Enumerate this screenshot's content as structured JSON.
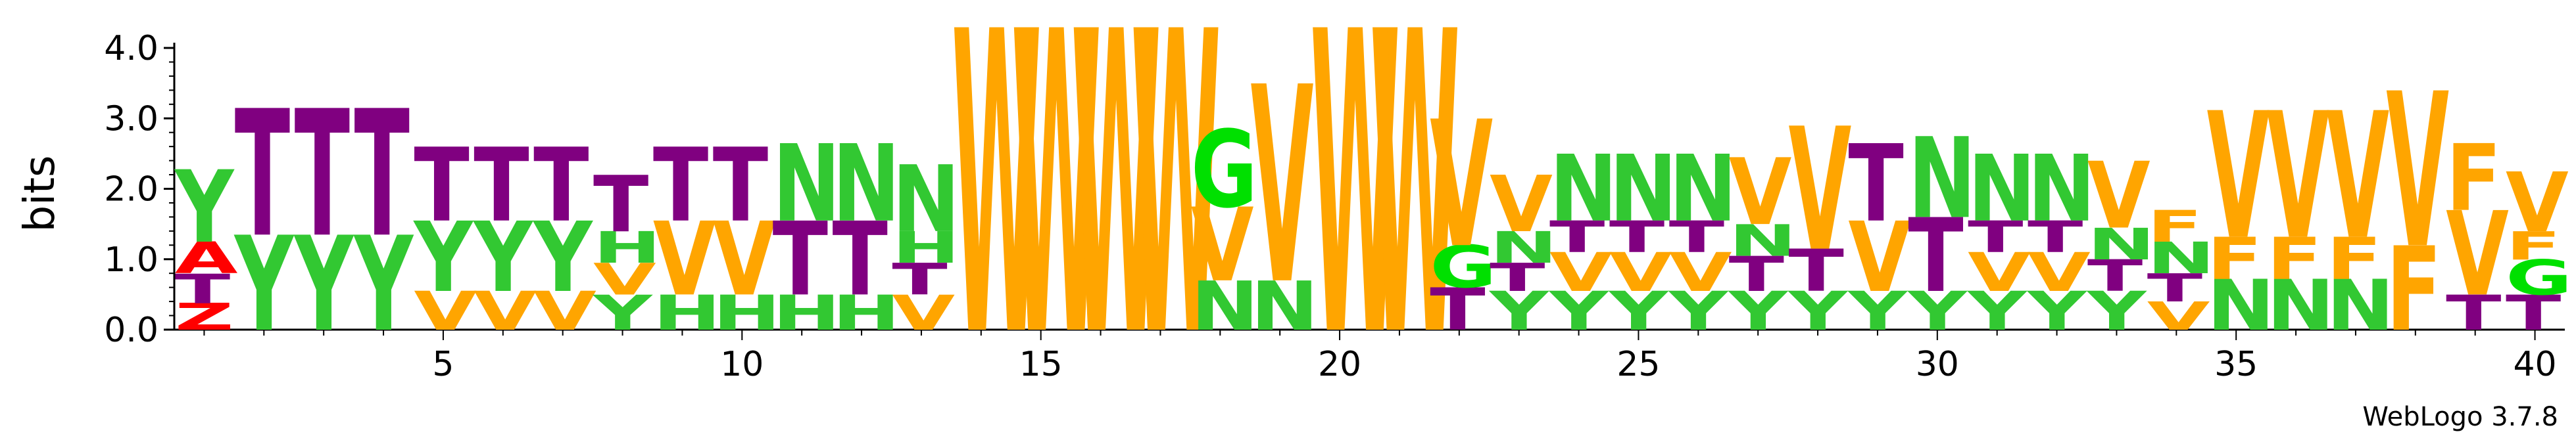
{
  "chart_data": {
    "type": "sequence-logo",
    "ylabel": "bits",
    "ylim": [
      0,
      4.0
    ],
    "y_ticks": [
      "0.0",
      "1.0",
      "2.0",
      "3.0",
      "4.0"
    ],
    "x_ticks": [
      5,
      10,
      15,
      20,
      25,
      30,
      35,
      40
    ],
    "x_tick_labels": [
      "5",
      "10",
      "15",
      "20",
      "25",
      "30",
      "35",
      "40"
    ],
    "colors": {
      "T": "#800080",
      "Y": "#32c832",
      "N": "#32c832",
      "G": "#00e000",
      "H": "#32c832",
      "A": "#ff0000",
      "Z": "#ff0000",
      "V": "#ffa500",
      "W": "#ffa500",
      "F": "#ffa500"
    },
    "positions": [
      {
        "pos": 1,
        "stack": [
          [
            "Z",
            0.38
          ],
          [
            "T",
            0.42
          ],
          [
            "A",
            0.45
          ],
          [
            "Y",
            1.03
          ]
        ]
      },
      {
        "pos": 2,
        "stack": [
          [
            "Y",
            1.35
          ],
          [
            "T",
            1.8
          ]
        ]
      },
      {
        "pos": 3,
        "stack": [
          [
            "Y",
            1.35
          ],
          [
            "T",
            1.8
          ]
        ]
      },
      {
        "pos": 4,
        "stack": [
          [
            "Y",
            1.35
          ],
          [
            "T",
            1.8
          ]
        ]
      },
      {
        "pos": 5,
        "stack": [
          [
            "V",
            0.55
          ],
          [
            "Y",
            1.0
          ],
          [
            "T",
            1.05
          ]
        ]
      },
      {
        "pos": 6,
        "stack": [
          [
            "V",
            0.55
          ],
          [
            "Y",
            1.0
          ],
          [
            "T",
            1.05
          ]
        ]
      },
      {
        "pos": 7,
        "stack": [
          [
            "V",
            0.55
          ],
          [
            "Y",
            1.0
          ],
          [
            "T",
            1.05
          ]
        ]
      },
      {
        "pos": 8,
        "stack": [
          [
            "Y",
            0.5
          ],
          [
            "V",
            0.45
          ],
          [
            "H",
            0.45
          ],
          [
            "T",
            0.8
          ]
        ]
      },
      {
        "pos": 9,
        "stack": [
          [
            "H",
            0.5
          ],
          [
            "V",
            1.05
          ],
          [
            "T",
            1.05
          ]
        ]
      },
      {
        "pos": 10,
        "stack": [
          [
            "H",
            0.5
          ],
          [
            "V",
            1.05
          ],
          [
            "T",
            1.05
          ]
        ]
      },
      {
        "pos": 11,
        "stack": [
          [
            "H",
            0.5
          ],
          [
            "T",
            1.05
          ],
          [
            "N",
            1.1
          ]
        ]
      },
      {
        "pos": 12,
        "stack": [
          [
            "H",
            0.5
          ],
          [
            "T",
            1.05
          ],
          [
            "N",
            1.1
          ]
        ]
      },
      {
        "pos": 13,
        "stack": [
          [
            "V",
            0.5
          ],
          [
            "T",
            0.45
          ],
          [
            "H",
            0.45
          ],
          [
            "N",
            0.95
          ]
        ]
      },
      {
        "pos": 14,
        "stack": [
          [
            "W",
            4.3
          ]
        ]
      },
      {
        "pos": 15,
        "stack": [
          [
            "W",
            4.3
          ]
        ]
      },
      {
        "pos": 16,
        "stack": [
          [
            "W",
            4.3
          ]
        ]
      },
      {
        "pos": 17,
        "stack": [
          [
            "W",
            4.3
          ]
        ]
      },
      {
        "pos": 18,
        "stack": [
          [
            "N",
            0.7
          ],
          [
            "V",
            1.05
          ],
          [
            "G",
            1.1
          ]
        ]
      },
      {
        "pos": 19,
        "stack": [
          [
            "N",
            0.7
          ],
          [
            "V",
            2.8
          ]
        ]
      },
      {
        "pos": 20,
        "stack": [
          [
            "W",
            4.3
          ]
        ]
      },
      {
        "pos": 21,
        "stack": [
          [
            "W",
            4.3
          ]
        ]
      },
      {
        "pos": 22,
        "stack": [
          [
            "T",
            0.6
          ],
          [
            "G",
            0.6
          ],
          [
            "V",
            1.8
          ]
        ]
      },
      {
        "pos": 23,
        "stack": [
          [
            "Y",
            0.55
          ],
          [
            "T",
            0.4
          ],
          [
            "N",
            0.45
          ],
          [
            "V",
            0.8
          ]
        ]
      },
      {
        "pos": 24,
        "stack": [
          [
            "Y",
            0.55
          ],
          [
            "V",
            0.55
          ],
          [
            "T",
            0.45
          ],
          [
            "N",
            0.95
          ]
        ]
      },
      {
        "pos": 25,
        "stack": [
          [
            "Y",
            0.55
          ],
          [
            "V",
            0.55
          ],
          [
            "T",
            0.45
          ],
          [
            "N",
            0.95
          ]
        ]
      },
      {
        "pos": 26,
        "stack": [
          [
            "Y",
            0.55
          ],
          [
            "V",
            0.55
          ],
          [
            "T",
            0.45
          ],
          [
            "N",
            0.95
          ]
        ]
      },
      {
        "pos": 27,
        "stack": [
          [
            "Y",
            0.55
          ],
          [
            "T",
            0.5
          ],
          [
            "N",
            0.45
          ],
          [
            "V",
            0.95
          ]
        ]
      },
      {
        "pos": 28,
        "stack": [
          [
            "Y",
            0.55
          ],
          [
            "T",
            0.6
          ],
          [
            "V",
            1.75
          ]
        ]
      },
      {
        "pos": 29,
        "stack": [
          [
            "Y",
            0.55
          ],
          [
            "V",
            1.0
          ],
          [
            "T",
            1.1
          ]
        ]
      },
      {
        "pos": 30,
        "stack": [
          [
            "Y",
            0.55
          ],
          [
            "T",
            1.05
          ],
          [
            "N",
            1.15
          ]
        ]
      },
      {
        "pos": 31,
        "stack": [
          [
            "Y",
            0.55
          ],
          [
            "V",
            0.55
          ],
          [
            "T",
            0.45
          ],
          [
            "N",
            0.95
          ]
        ]
      },
      {
        "pos": 32,
        "stack": [
          [
            "Y",
            0.55
          ],
          [
            "V",
            0.55
          ],
          [
            "T",
            0.45
          ],
          [
            "N",
            0.95
          ]
        ]
      },
      {
        "pos": 33,
        "stack": [
          [
            "Y",
            0.55
          ],
          [
            "T",
            0.45
          ],
          [
            "N",
            0.45
          ],
          [
            "V",
            0.95
          ]
        ]
      },
      {
        "pos": 34,
        "stack": [
          [
            "V",
            0.4
          ],
          [
            "T",
            0.4
          ],
          [
            "N",
            0.45
          ],
          [
            "F",
            0.45
          ]
        ]
      },
      {
        "pos": 35,
        "stack": [
          [
            "N",
            0.72
          ],
          [
            "F",
            0.6
          ],
          [
            "V",
            1.8
          ]
        ]
      },
      {
        "pos": 36,
        "stack": [
          [
            "N",
            0.72
          ],
          [
            "F",
            0.6
          ],
          [
            "V",
            1.8
          ]
        ]
      },
      {
        "pos": 37,
        "stack": [
          [
            "N",
            0.72
          ],
          [
            "F",
            0.6
          ],
          [
            "V",
            1.8
          ]
        ]
      },
      {
        "pos": 38,
        "stack": [
          [
            "F",
            1.2
          ],
          [
            "V",
            2.2
          ]
        ]
      },
      {
        "pos": 39,
        "stack": [
          [
            "T",
            0.5
          ],
          [
            "V",
            1.2
          ],
          [
            "F",
            0.95
          ]
        ]
      },
      {
        "pos": 40,
        "stack": [
          [
            "T",
            0.5
          ],
          [
            "G",
            0.5
          ],
          [
            "F",
            0.4
          ],
          [
            "V",
            0.85
          ]
        ]
      }
    ]
  },
  "credit": "WebLogo 3.7.8"
}
